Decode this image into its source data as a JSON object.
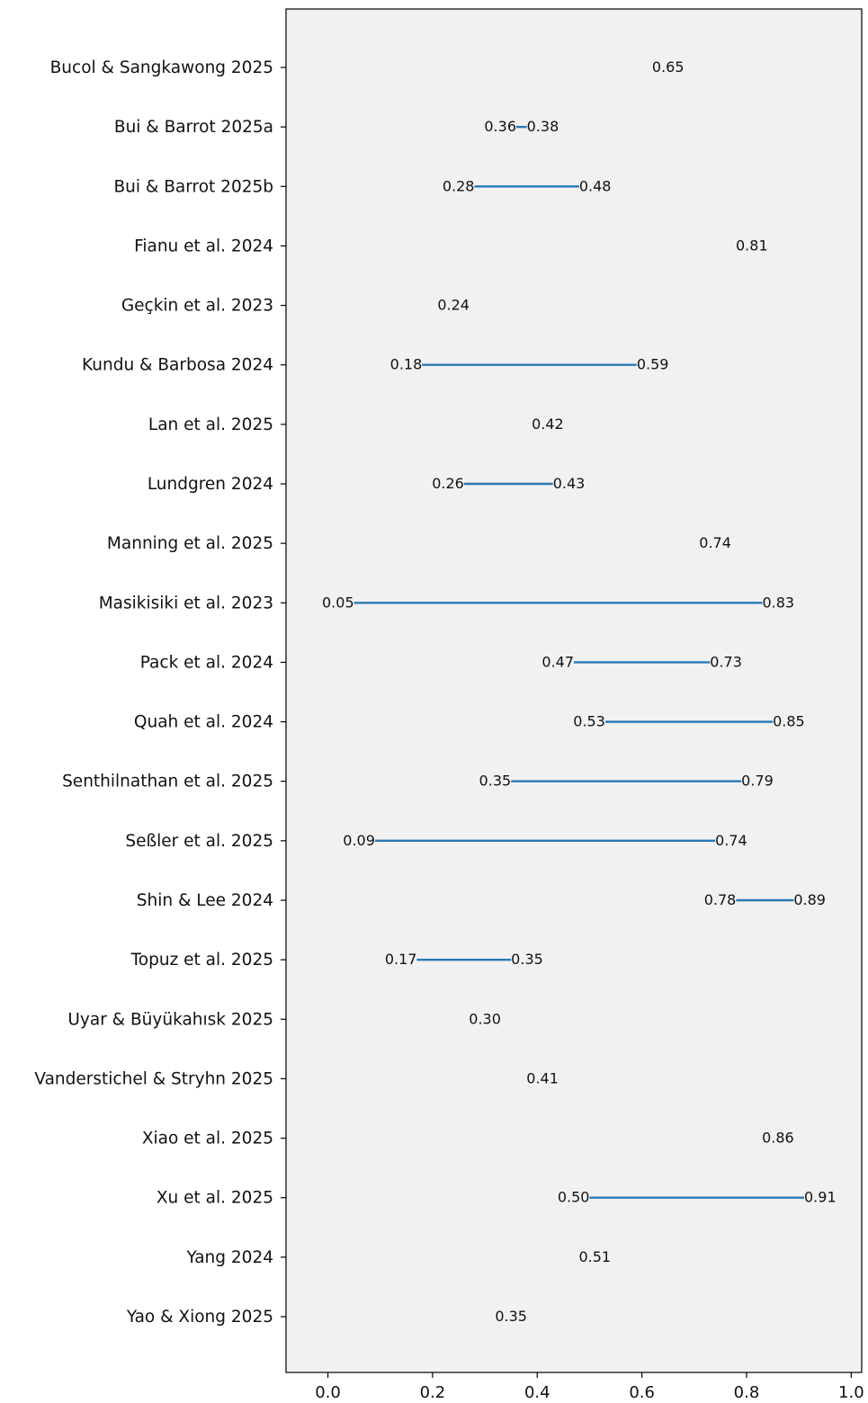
{
  "chart_data": {
    "type": "range",
    "title": "",
    "xlabel": "",
    "ylabel": "",
    "xlim": [
      -0.08,
      1.02
    ],
    "xticks": [
      "0.0",
      "0.2",
      "0.4",
      "0.6",
      "0.8",
      "1.0"
    ],
    "grid": false,
    "legend": null,
    "colors": {
      "line": "#2878b5",
      "plot_background": "#f1f1f1",
      "axes": "#000000",
      "text": "#111111"
    },
    "rows": [
      {
        "label": "Bucol & Sangkawong 2025",
        "low": 0.65,
        "high": 0.65
      },
      {
        "label": "Bui & Barrot 2025a",
        "low": 0.36,
        "high": 0.38
      },
      {
        "label": "Bui & Barrot 2025b",
        "low": 0.28,
        "high": 0.48
      },
      {
        "label": "Fianu et al. 2024",
        "low": 0.81,
        "high": 0.81
      },
      {
        "label": "Geçkin et al. 2023",
        "low": 0.24,
        "high": 0.24
      },
      {
        "label": "Kundu & Barbosa 2024",
        "low": 0.18,
        "high": 0.59
      },
      {
        "label": "Lan et al. 2025",
        "low": 0.42,
        "high": 0.42
      },
      {
        "label": "Lundgren 2024",
        "low": 0.26,
        "high": 0.43
      },
      {
        "label": "Manning et al. 2025",
        "low": 0.74,
        "high": 0.74
      },
      {
        "label": "Masikisiki et al. 2023",
        "low": 0.05,
        "high": 0.83
      },
      {
        "label": "Pack et al. 2024",
        "low": 0.47,
        "high": 0.73
      },
      {
        "label": "Quah et al. 2024",
        "low": 0.53,
        "high": 0.85
      },
      {
        "label": "Senthilnathan et al. 2025",
        "low": 0.35,
        "high": 0.79
      },
      {
        "label": "Seßler et al. 2025",
        "low": 0.09,
        "high": 0.74
      },
      {
        "label": "Shin & Lee 2024",
        "low": 0.78,
        "high": 0.89
      },
      {
        "label": "Topuz et al. 2025",
        "low": 0.17,
        "high": 0.35
      },
      {
        "label": "Uyar & Büyükahısk 2025",
        "low": 0.3,
        "high": 0.3
      },
      {
        "label": "Vanderstichel & Stryhn 2025",
        "low": 0.41,
        "high": 0.41
      },
      {
        "label": "Xiao et al. 2025",
        "low": 0.86,
        "high": 0.86
      },
      {
        "label": "Xu et al. 2025",
        "low": 0.5,
        "high": 0.91
      },
      {
        "label": "Yang 2024",
        "low": 0.51,
        "high": 0.51
      },
      {
        "label": "Yao & Xiong 2025",
        "low": 0.35,
        "high": 0.35
      }
    ]
  }
}
